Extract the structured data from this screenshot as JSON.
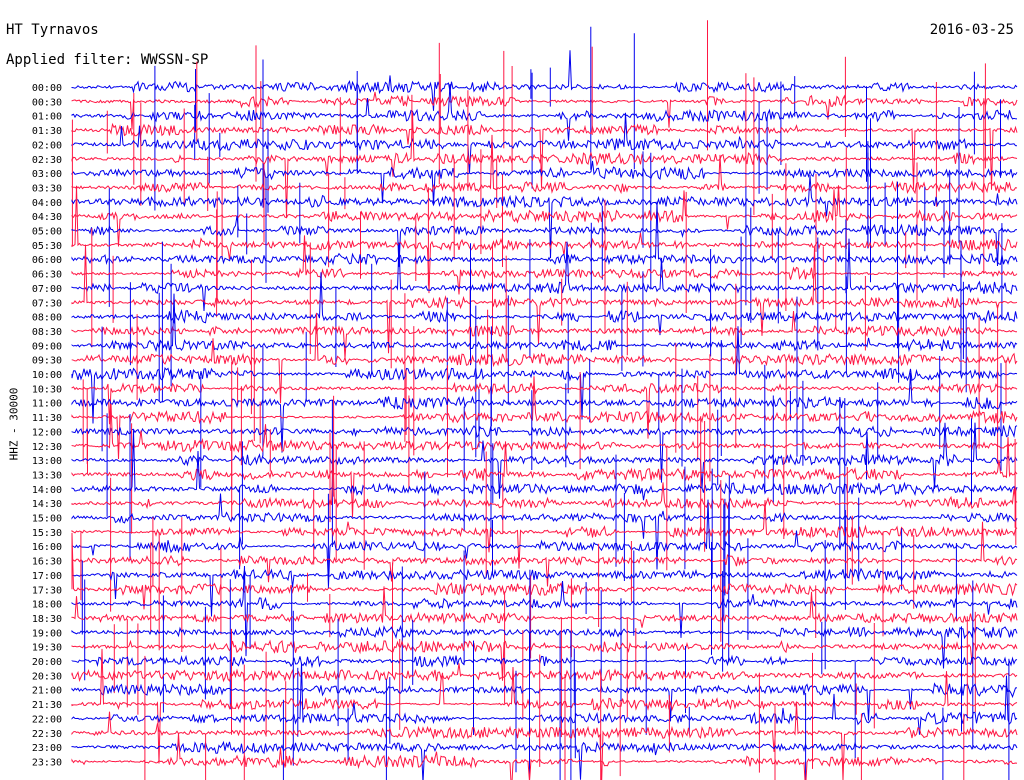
{
  "header": {
    "station": "HT Tyrnavos",
    "date": "2016-03-25",
    "filter": "Applied filter: WWSSN-SP",
    "channel": "HHZ - 30000"
  },
  "chart_data": {
    "type": "line",
    "title": "HT Tyrnavos",
    "subtitle": "Applied filter: WWSSN-SP",
    "ylabel": "HHZ - 30000",
    "rows": [
      "00:00",
      "00:30",
      "01:00",
      "01:30",
      "02:00",
      "02:30",
      "03:00",
      "03:30",
      "04:00",
      "04:30",
      "05:00",
      "05:30",
      "06:00",
      "06:30",
      "07:00",
      "07:30",
      "08:00",
      "08:30",
      "09:00",
      "09:30",
      "10:00",
      "10:30",
      "11:00",
      "11:30",
      "12:00",
      "12:30",
      "13:00",
      "13:30",
      "14:00",
      "14:30",
      "15:00",
      "15:30",
      "16:00",
      "16:30",
      "17:00",
      "17:30",
      "18:00",
      "18:30",
      "19:00",
      "19:30",
      "20:00",
      "20:30",
      "21:00",
      "21:30",
      "22:00",
      "22:30",
      "23:00",
      "23:30"
    ],
    "trace_colors": [
      "#0000ee",
      "#ff1744"
    ],
    "grid": false
  }
}
